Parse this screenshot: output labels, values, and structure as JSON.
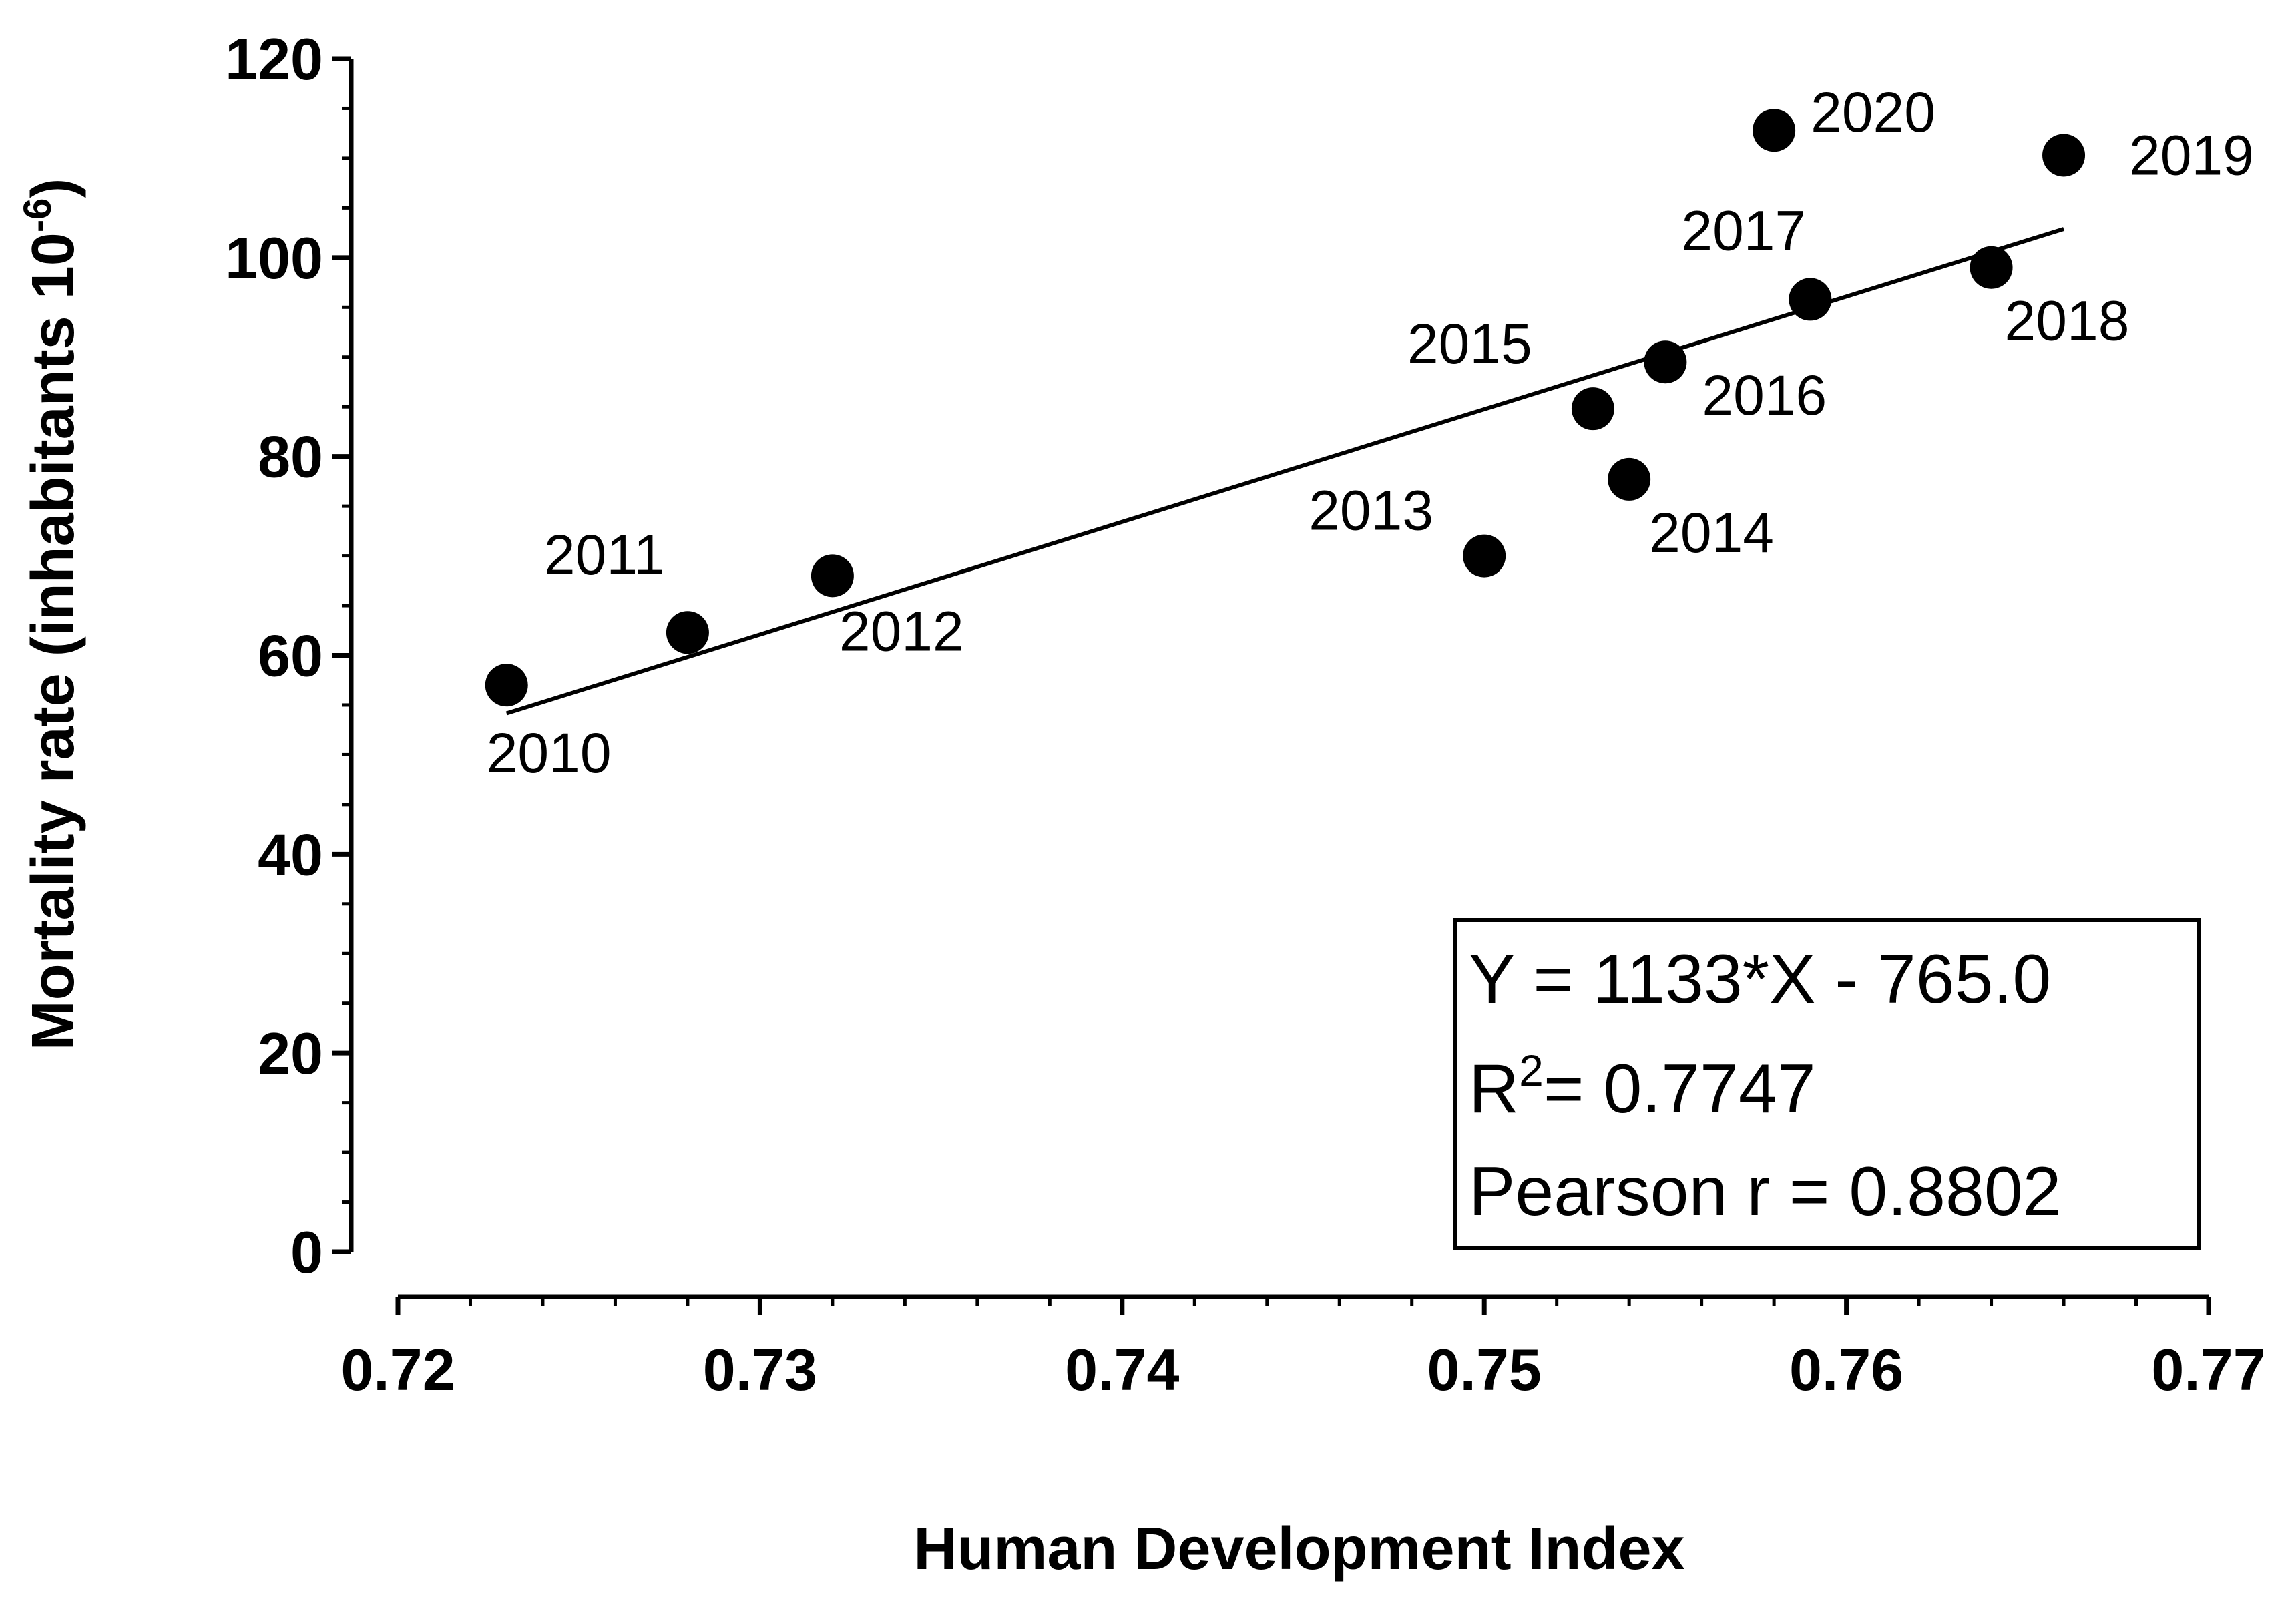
{
  "chart_data": {
    "type": "scatter",
    "title": "",
    "xlabel": "Human Development Index",
    "ylabel_main": "Mortality rate (inhabitants 10",
    "ylabel_sup": "-6",
    "ylabel_end": ")",
    "xlim": [
      0.72,
      0.77
    ],
    "ylim": [
      0,
      120
    ],
    "xticks": [
      0.72,
      0.73,
      0.74,
      0.75,
      0.76,
      0.77
    ],
    "xtick_labels": [
      "0.72",
      "0.73",
      "0.74",
      "0.75",
      "0.76",
      "0.77"
    ],
    "yticks": [
      0,
      20,
      40,
      60,
      80,
      100,
      120
    ],
    "ytick_labels": [
      "0",
      "20",
      "40",
      "60",
      "80",
      "100",
      "120"
    ],
    "points": [
      {
        "year": "2010",
        "x": 0.723,
        "y": 57
      },
      {
        "year": "2011",
        "x": 0.728,
        "y": 62.3
      },
      {
        "year": "2012",
        "x": 0.732,
        "y": 68
      },
      {
        "year": "2013",
        "x": 0.75,
        "y": 70
      },
      {
        "year": "2014",
        "x": 0.754,
        "y": 77.7
      },
      {
        "year": "2015",
        "x": 0.753,
        "y": 84.8
      },
      {
        "year": "2016",
        "x": 0.755,
        "y": 89.5
      },
      {
        "year": "2017",
        "x": 0.759,
        "y": 95.8
      },
      {
        "year": "2018",
        "x": 0.764,
        "y": 99
      },
      {
        "year": "2019",
        "x": 0.766,
        "y": 110.3
      },
      {
        "year": "2020",
        "x": 0.758,
        "y": 112.8
      }
    ],
    "fit": {
      "x_start": 0.723,
      "x_end": 0.766,
      "slope": 1133,
      "intercept": -765.0
    },
    "stats": {
      "equation": "Y = 1133*X - 765.0",
      "r2_prefix": "R",
      "r2_sup": "2",
      "r2_value": "= 0.7747",
      "pearson": "Pearson r = 0.8802"
    }
  }
}
